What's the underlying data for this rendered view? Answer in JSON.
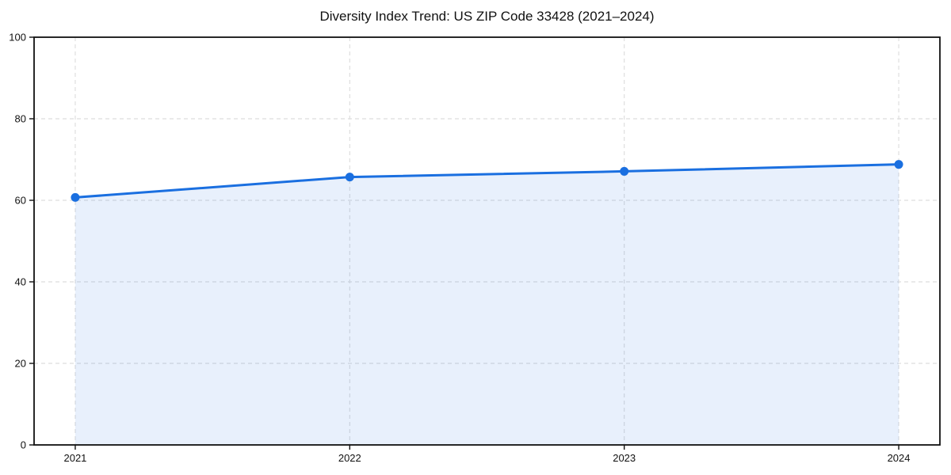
{
  "chart_data": {
    "type": "area",
    "title": "Diversity Index Trend: US ZIP Code 33428 (2021–2024)",
    "xlabel": "",
    "ylabel": "",
    "series": [
      {
        "name": "Diversity Index",
        "x": [
          2021,
          2022,
          2023,
          2024
        ],
        "values": [
          60.7,
          65.7,
          67.1,
          68.8
        ]
      }
    ],
    "xlim": [
      2020.85,
      2024.15
    ],
    "ylim": [
      0,
      100
    ],
    "xticks": [
      2021,
      2022,
      2023,
      2024
    ],
    "xtick_labels": [
      "2021",
      "2022",
      "2023",
      "2024"
    ],
    "yticks": [
      0,
      20,
      40,
      60,
      80,
      100
    ],
    "ytick_labels": [
      "0",
      "20",
      "40",
      "60",
      "80",
      "100"
    ],
    "grid": true,
    "grid_style": "dashed",
    "legend_position": "none",
    "line_color": "#1a6fe0",
    "marker_color": "#1a6fe0",
    "marker": "circle",
    "fill_color": "rgba(26,111,224,0.10)",
    "grid_color": "#dedede",
    "axis_color": "#111111",
    "background_color": "#ffffff"
  }
}
